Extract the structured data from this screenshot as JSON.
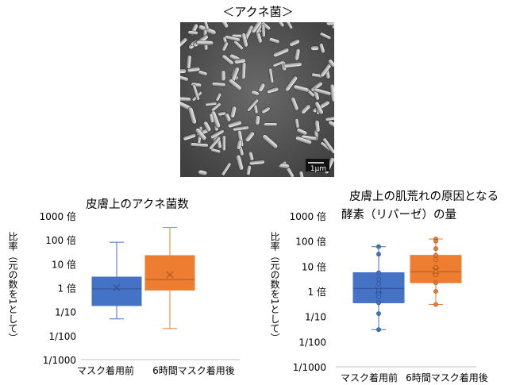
{
  "header": {
    "title": "＜アクネ菌＞"
  },
  "micrograph": {
    "scale_label": "1μm"
  },
  "charts": [
    {
      "title_lines": [
        "皮膚上のアクネ菌数"
      ],
      "ylabel": "比率（元の数を1として）",
      "categories": [
        "マスク着用前",
        "6時間マスク着用後"
      ]
    },
    {
      "title_lines": [
        "皮膚上の肌荒れの原因となる",
        "酵素（リパーゼ）の量"
      ],
      "ylabel": "比率（元の数を1として）",
      "categories": [
        "マスク着用前",
        "6時間マスク着用後"
      ]
    }
  ],
  "chart_data": [
    {
      "type": "box",
      "title": "皮膚上のアクネ菌数",
      "ylabel": "比率（元の数を1として）",
      "yscale": "log",
      "ylim": [
        0.001,
        1000
      ],
      "yticks": [
        {
          "value": 1000,
          "label": "1000 倍"
        },
        {
          "value": 100,
          "label": "100 倍"
        },
        {
          "value": 10,
          "label": "10 倍"
        },
        {
          "value": 1,
          "label": "1 倍"
        },
        {
          "value": 0.1,
          "label": "1/10"
        },
        {
          "value": 0.01,
          "label": "1/100"
        },
        {
          "value": 0.001,
          "label": "1/1000"
        }
      ],
      "categories": [
        "マスク着用前",
        "6時間マスク着用後"
      ],
      "series": [
        {
          "color": "#4472C4",
          "whisker_low": 0.05,
          "q1": 0.18,
          "median": 0.9,
          "q3": 2.8,
          "whisker_high": 80,
          "mean": 1,
          "points": []
        },
        {
          "color": "#ED7D31",
          "whisker_low": 0.02,
          "q1": 0.8,
          "median": 2.2,
          "q3": 22,
          "whisker_high": 330,
          "mean": 3.5,
          "points": []
        }
      ]
    },
    {
      "type": "box",
      "title": "皮膚上の肌荒れの原因となる 酵素（リパーゼ）の量",
      "ylabel": "比率（元の数を1として）",
      "yscale": "log",
      "ylim": [
        0.001,
        1000
      ],
      "yticks": [
        {
          "value": 1000,
          "label": "1000 倍"
        },
        {
          "value": 100,
          "label": "100 倍"
        },
        {
          "value": 10,
          "label": "10 倍"
        },
        {
          "value": 1,
          "label": "1 倍"
        },
        {
          "value": 0.1,
          "label": "1/10"
        },
        {
          "value": 0.01,
          "label": "1/100"
        },
        {
          "value": 0.001,
          "label": "1/1000"
        }
      ],
      "categories": [
        "マスク着用前",
        "6時間マスク着用後"
      ],
      "series": [
        {
          "color": "#4472C4",
          "whisker_low": 0.03,
          "q1": 0.35,
          "median": 1.3,
          "q3": 5.5,
          "whisker_high": 60,
          "mean": 1.1,
          "points": [
            60,
            30,
            5.5,
            3,
            2,
            1.1,
            0.8,
            0.6,
            0.35,
            0.13,
            0.03
          ]
        },
        {
          "color": "#ED7D31",
          "whisker_low": 0.3,
          "q1": 2.2,
          "median": 6,
          "q3": 27,
          "whisker_high": 120,
          "mean": 6.5,
          "points": [
            120,
            100,
            50,
            27,
            18,
            9,
            6,
            4.5,
            2.2,
            1,
            0.3
          ]
        }
      ]
    }
  ]
}
